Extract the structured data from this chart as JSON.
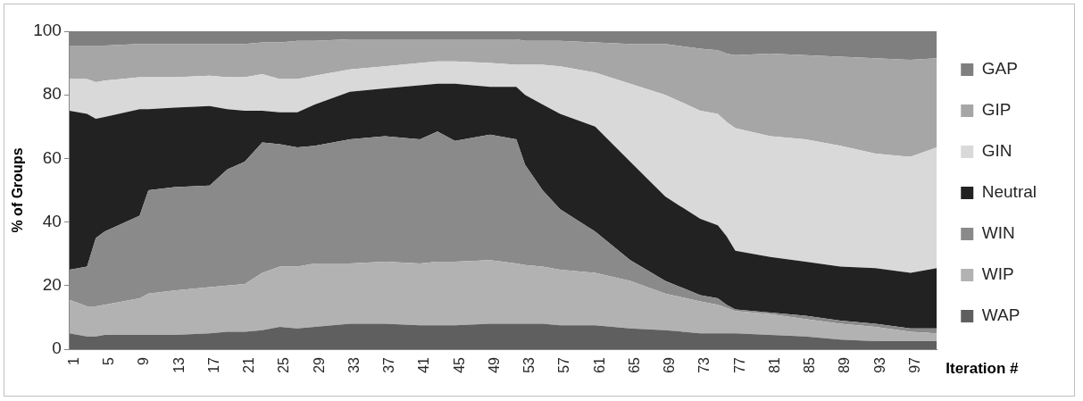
{
  "chart_data": {
    "type": "area",
    "stacked": true,
    "ylabel": "% of Groups",
    "xlabel": "Iteration #",
    "x": [
      1,
      3,
      4,
      5,
      9,
      10,
      13,
      17,
      19,
      21,
      23,
      25,
      27,
      29,
      33,
      37,
      41,
      43,
      45,
      49,
      52,
      53,
      55,
      57,
      61,
      65,
      69,
      73,
      75,
      76,
      77,
      81,
      85,
      89,
      93,
      97,
      100
    ],
    "xlim": [
      1,
      100
    ],
    "xticks": [
      1,
      5,
      9,
      13,
      17,
      21,
      25,
      29,
      33,
      37,
      41,
      45,
      49,
      53,
      57,
      61,
      65,
      69,
      73,
      77,
      81,
      85,
      89,
      93,
      97
    ],
    "ylim": [
      0,
      100
    ],
    "yticks": [
      0,
      20,
      40,
      60,
      80,
      100
    ],
    "grid": false,
    "legend": "right",
    "series": [
      {
        "name": "WAP",
        "color": "#5f5f5f",
        "values": [
          5,
          4,
          4,
          4.5,
          4.5,
          4.5,
          4.5,
          5,
          5.5,
          5.5,
          6,
          7,
          6.5,
          7,
          8,
          8,
          7.5,
          7.5,
          7.5,
          8,
          8,
          8,
          8,
          7.5,
          7.5,
          6.5,
          6,
          5,
          5,
          5,
          5,
          4.5,
          4,
          3,
          2.5,
          2.5,
          2.5
        ]
      },
      {
        "name": "WIP",
        "color": "#b2b2b2",
        "values": [
          10.5,
          9.5,
          9.5,
          9.5,
          11.5,
          13,
          14,
          14.5,
          14.5,
          15,
          18,
          19,
          19.5,
          20,
          19,
          19.5,
          19.5,
          20,
          20,
          20,
          19,
          18.5,
          18,
          17.5,
          16.5,
          15,
          11.5,
          10,
          9,
          8,
          7,
          6.5,
          5.5,
          5,
          4.5,
          3,
          2.5
        ]
      },
      {
        "name": "WIN",
        "color": "#8a8a8a",
        "values": [
          9.5,
          12.5,
          21.5,
          23,
          26,
          32.5,
          32.5,
          32,
          36.5,
          38.5,
          41,
          38.5,
          37.5,
          37,
          39,
          39.5,
          39,
          41,
          38,
          39.5,
          39,
          31.5,
          24,
          19,
          13,
          6.5,
          4,
          2,
          2,
          1,
          0.5,
          0.5,
          1,
          1,
          1,
          1,
          1.5
        ]
      },
      {
        "name": "Neutral",
        "color": "#222222",
        "values": [
          50,
          48,
          37.5,
          36,
          33.5,
          25.5,
          25,
          25,
          19,
          16,
          10,
          10,
          11,
          13,
          15,
          15,
          17,
          15,
          18,
          15,
          16.5,
          22,
          27,
          30,
          33,
          31,
          26.5,
          24,
          23,
          21.5,
          18.5,
          17.5,
          17,
          17,
          17.5,
          17.5,
          19
        ]
      },
      {
        "name": "GIN",
        "color": "#d9d9d9",
        "values": [
          10,
          11,
          11.5,
          11.5,
          10,
          10,
          9.5,
          9.5,
          10,
          10.5,
          11.5,
          10.5,
          10.5,
          9,
          7,
          7,
          7,
          7,
          7,
          7.5,
          7,
          9.5,
          12.5,
          15,
          17,
          24.5,
          32,
          34,
          35,
          36,
          38.5,
          38,
          38.5,
          38,
          36,
          36.5,
          38
        ]
      },
      {
        "name": "GIP",
        "color": "#a6a6a6",
        "values": [
          10.5,
          10.5,
          11.5,
          11,
          10.5,
          10.5,
          10.5,
          10,
          10.5,
          10.5,
          10,
          11.5,
          12,
          11,
          9.5,
          8.5,
          7.5,
          7,
          7,
          7.5,
          8,
          7.5,
          7.5,
          8,
          9.5,
          12.5,
          16,
          19.5,
          20,
          21.5,
          23,
          26,
          26.5,
          28,
          30,
          30.5,
          28
        ]
      },
      {
        "name": "GAP",
        "color": "#7f7f7f",
        "values": [
          4.5,
          4.5,
          4.5,
          4.5,
          4,
          4,
          4,
          4,
          4,
          4,
          3.5,
          3.5,
          3,
          3,
          2.5,
          2.5,
          2.5,
          2.5,
          2.5,
          2.5,
          2.5,
          3,
          3,
          3,
          3.5,
          4,
          4,
          5.5,
          6,
          7,
          7.5,
          7,
          7.5,
          8,
          8.5,
          9,
          8.5
        ]
      }
    ]
  }
}
